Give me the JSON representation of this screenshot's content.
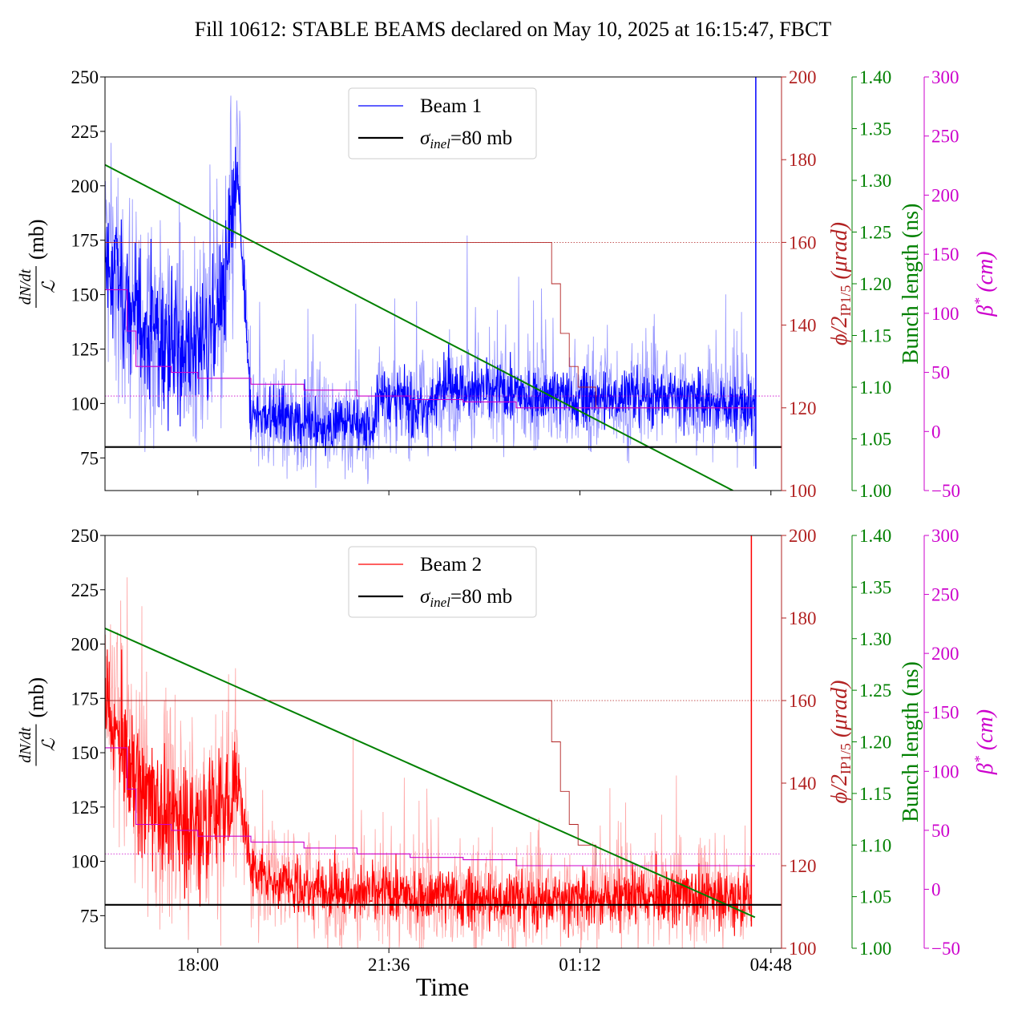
{
  "title": "Fill 10612: STABLE BEAMS declared on May 10, 2025 at 16:15:47, FBCT",
  "xlabel": "Time",
  "x_ticks": [
    "18:00",
    "21:36",
    "01:12",
    "04:48"
  ],
  "colors": {
    "beam1": "#0000ff",
    "beam1_light": "#9a9aff",
    "beam2": "#ff0000",
    "beam2_light": "#ffa8a8",
    "xing": "#b22222",
    "bunch": "#008000",
    "beta": "#cc00cc",
    "sigma": "#000000"
  },
  "axes_labels": {
    "left_num": "dN/dt",
    "left_den": "ℒ",
    "left_unit": "(mb)",
    "xing": "ϕ/2",
    "xing_sub": "IP1/5",
    "xing_unit": "(μrad)",
    "bunch": "Bunch length (ns)",
    "beta": "β",
    "beta_sup": "*",
    "beta_unit": "(cm)"
  },
  "chart_data": [
    {
      "type": "line",
      "panel": "top",
      "legend": [
        {
          "label": "Beam 1",
          "color": "#0000ff"
        },
        {
          "label": "σinel=80 mb",
          "text_main": "σ",
          "text_sub": "inel",
          "text_rest": "=80 mb",
          "color": "#000000"
        }
      ],
      "legend_position": "upper-center",
      "x_range": [
        "16:15",
        "05:00"
      ],
      "ylim": [
        60,
        250
      ],
      "y_ticks": [
        75,
        100,
        125,
        150,
        175,
        200,
        225,
        250
      ],
      "right_axes": {
        "xing": {
          "ylim": [
            100,
            200
          ],
          "ticks": [
            100,
            120,
            140,
            160,
            180,
            200
          ]
        },
        "bunch": {
          "ylim": [
            1.0,
            1.4
          ],
          "ticks": [
            "1.00",
            "1.05",
            "1.10",
            "1.15",
            "1.20",
            "1.25",
            "1.30",
            "1.35",
            "1.40"
          ]
        },
        "beta": {
          "ylim": [
            -50,
            300
          ],
          "ticks": [
            -50,
            0,
            50,
            100,
            150,
            200,
            250,
            300
          ]
        }
      },
      "sigma_inel_mb": 80,
      "series": [
        {
          "name": "Beam 1",
          "kind": "cross-section (mb)",
          "smoothed": [
            [
              "16:15",
              170
            ],
            [
              "16:40",
              145
            ],
            [
              "17:00",
              135
            ],
            [
              "17:30",
              128
            ],
            [
              "18:00",
              125
            ],
            [
              "18:30",
              150
            ],
            [
              "18:45",
              205
            ],
            [
              "19:00",
              95
            ],
            [
              "20:00",
              92
            ],
            [
              "21:00",
              90
            ],
            [
              "21:20",
              88
            ],
            [
              "21:22",
              105
            ],
            [
              "22:00",
              100
            ],
            [
              "22:30",
              98
            ],
            [
              "22:31",
              110
            ],
            [
              "23:00",
              106
            ],
            [
              "00:00",
              104
            ],
            [
              "01:00",
              102
            ],
            [
              "02:00",
              103
            ],
            [
              "03:00",
              104
            ],
            [
              "04:00",
              100
            ],
            [
              "04:30",
              98
            ]
          ]
        },
        {
          "name": "Crossing angle",
          "axis": "xing",
          "values": [
            [
              "16:15",
              160
            ],
            [
              "00:30",
              160
            ],
            [
              "00:40",
              150
            ],
            [
              "00:50",
              138
            ],
            [
              "01:00",
              130
            ],
            [
              "01:10",
              125
            ],
            [
              "01:30",
              120
            ],
            [
              "04:30",
              120
            ]
          ]
        },
        {
          "name": "Bunch length",
          "axis": "bunch",
          "values": [
            [
              "16:15",
              1.315
            ],
            [
              "04:05",
              1.0
            ]
          ]
        },
        {
          "name": "Beta*",
          "axis": "beta",
          "values": [
            [
              "16:15",
              120
            ],
            [
              "16:30",
              120
            ],
            [
              "16:40",
              85
            ],
            [
              "16:50",
              55
            ],
            [
              "17:30",
              50
            ],
            [
              "18:00",
              45
            ],
            [
              "19:00",
              40
            ],
            [
              "20:00",
              35
            ],
            [
              "21:00",
              30
            ],
            [
              "22:00",
              27
            ],
            [
              "23:00",
              25
            ],
            [
              "00:00",
              20
            ],
            [
              "04:30",
              20
            ]
          ]
        }
      ],
      "reference_lines": [
        {
          "axis": "xing",
          "value": 160,
          "style": "dotted"
        },
        {
          "axis": "beta",
          "value": 30,
          "style": "dotted"
        }
      ]
    },
    {
      "type": "line",
      "panel": "bottom",
      "legend": [
        {
          "label": "Beam 2",
          "color": "#ff0000"
        },
        {
          "label": "σinel=80 mb",
          "text_main": "σ",
          "text_sub": "inel",
          "text_rest": "=80 mb",
          "color": "#000000"
        }
      ],
      "legend_position": "upper-center",
      "x_range": [
        "16:15",
        "05:00"
      ],
      "ylim": [
        60,
        250
      ],
      "y_ticks": [
        75,
        100,
        125,
        150,
        175,
        200,
        225,
        250
      ],
      "right_axes": {
        "xing": {
          "ylim": [
            100,
            200
          ],
          "ticks": [
            100,
            120,
            140,
            160,
            180,
            200
          ]
        },
        "bunch": {
          "ylim": [
            1.0,
            1.4
          ],
          "ticks": [
            "1.00",
            "1.05",
            "1.10",
            "1.15",
            "1.20",
            "1.25",
            "1.30",
            "1.35",
            "1.40"
          ]
        },
        "beta": {
          "ylim": [
            -50,
            300
          ],
          "ticks": [
            -50,
            0,
            50,
            100,
            150,
            200,
            250,
            300
          ]
        }
      },
      "sigma_inel_mb": 80,
      "series": [
        {
          "name": "Beam 2",
          "kind": "cross-section (mb)",
          "smoothed": [
            [
              "16:15",
              175
            ],
            [
              "16:40",
              150
            ],
            [
              "17:00",
              130
            ],
            [
              "17:30",
              120
            ],
            [
              "18:00",
              118
            ],
            [
              "18:30",
              125
            ],
            [
              "18:45",
              140
            ],
            [
              "19:00",
              95
            ],
            [
              "20:00",
              88
            ],
            [
              "21:00",
              85
            ],
            [
              "22:00",
              84
            ],
            [
              "23:00",
              83
            ],
            [
              "00:00",
              82
            ],
            [
              "01:00",
              83
            ],
            [
              "02:00",
              84
            ],
            [
              "03:00",
              85
            ],
            [
              "04:00",
              84
            ],
            [
              "04:25",
              82
            ]
          ]
        },
        {
          "name": "Crossing angle",
          "axis": "xing",
          "values": [
            [
              "16:15",
              160
            ],
            [
              "00:30",
              160
            ],
            [
              "00:40",
              150
            ],
            [
              "00:50",
              138
            ],
            [
              "01:00",
              130
            ],
            [
              "01:10",
              125
            ],
            [
              "01:30",
              120
            ],
            [
              "04:30",
              120
            ]
          ]
        },
        {
          "name": "Bunch length",
          "axis": "bunch",
          "values": [
            [
              "16:15",
              1.31
            ],
            [
              "04:30",
              1.03
            ]
          ]
        },
        {
          "name": "Beta*",
          "axis": "beta",
          "values": [
            [
              "16:15",
              120
            ],
            [
              "16:30",
              120
            ],
            [
              "16:40",
              85
            ],
            [
              "16:50",
              55
            ],
            [
              "17:30",
              50
            ],
            [
              "18:00",
              45
            ],
            [
              "19:00",
              40
            ],
            [
              "20:00",
              35
            ],
            [
              "21:00",
              30
            ],
            [
              "22:00",
              27
            ],
            [
              "23:00",
              25
            ],
            [
              "00:00",
              20
            ],
            [
              "04:30",
              20
            ]
          ]
        }
      ],
      "reference_lines": [
        {
          "axis": "xing",
          "value": 160,
          "style": "dotted"
        },
        {
          "axis": "beta",
          "value": 30,
          "style": "dotted"
        }
      ]
    }
  ]
}
